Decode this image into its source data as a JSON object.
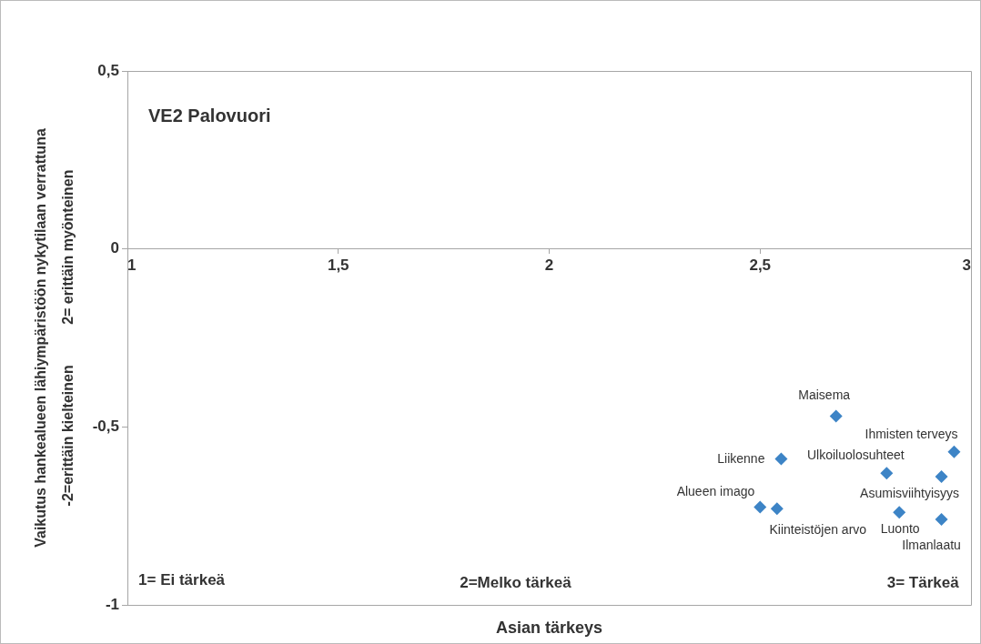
{
  "chart_data": {
    "type": "scatter",
    "title": "VE2 Palovuori",
    "xlabel": "Asian tärkeys",
    "ylabel": "Vaikutus hankealueen lähiympäristöön nykytilaan verrattuna\n-2=erittäin kielteinen          2= erittäin myönteinen",
    "x": [
      2.68,
      2.96,
      2.55,
      2.8,
      2.93,
      2.5,
      2.54,
      2.83,
      2.93
    ],
    "values": [
      -0.47,
      -0.57,
      -0.59,
      -0.63,
      -0.64,
      -0.725,
      -0.73,
      -0.74,
      -0.76
    ],
    "color": "#3d84c6",
    "marker": "diamond",
    "xlim": [
      1,
      3
    ],
    "xticks": [
      1,
      {
        "value": 1.5,
        "label": "1,5"
      },
      2,
      {
        "value": 2.5,
        "label": "2,5"
      },
      3
    ],
    "ylim": [
      -1,
      0.5
    ],
    "yticks": [
      -1,
      {
        "value": -0.5,
        "label": "-0,5"
      },
      0,
      {
        "value": 0.5,
        "label": "0,5"
      }
    ],
    "annotations": [
      {
        "text": "Maisema",
        "x": 2.68,
        "y": -0.47
      },
      {
        "text": "Ihmisten terveys",
        "x": 2.96,
        "y": -0.57
      },
      {
        "text": "Liikenne",
        "x": 2.55,
        "y": -0.59
      },
      {
        "text": "Ulkoiluolosuhteet",
        "x": 2.8,
        "y": -0.63
      },
      {
        "text": "Asumisviihtyisyys",
        "x": 2.93,
        "y": -0.64
      },
      {
        "text": "Alueen imago",
        "x": 2.5,
        "y": -0.725
      },
      {
        "text": "Kiinteistöjen arvo",
        "x": 2.54,
        "y": -0.73
      },
      {
        "text": "Luonto",
        "x": 2.83,
        "y": -0.74
      },
      {
        "text": "Ilmanlaatu",
        "x": 2.93,
        "y": -0.76
      },
      "1= Ei tärkeä",
      "2=Melko tärkeä",
      "3= Tärkeä"
    ]
  }
}
